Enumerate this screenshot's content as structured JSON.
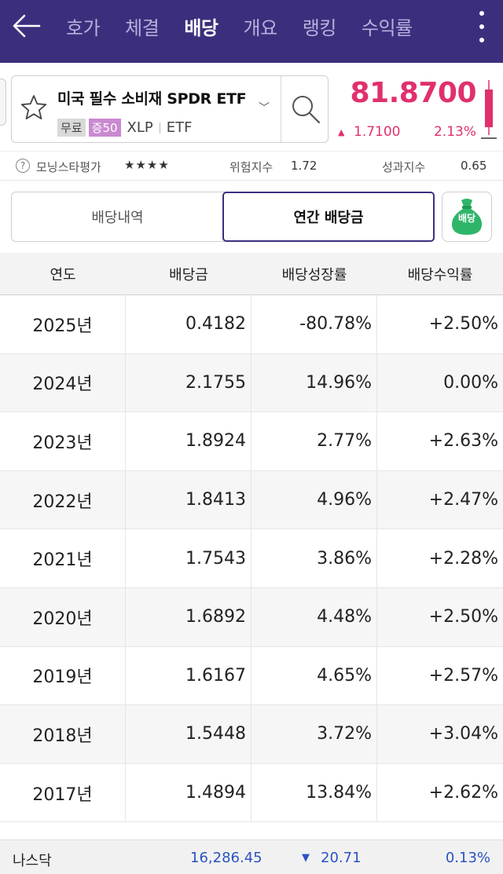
{
  "header": {
    "tabs": [
      "호가",
      "체결",
      "배당",
      "개요",
      "랭킹",
      "수익률"
    ],
    "active_tab": "배당"
  },
  "stock": {
    "name": "미국 필수 소비재 SPDR ETF",
    "badge_free": "무료",
    "badge_margin": "증50",
    "code": "XLP",
    "type": "ETF",
    "price": "81.8700",
    "change_symbol": "▲",
    "change": "1.7100",
    "change_pct": "2.13%"
  },
  "morningstar": {
    "help": "?",
    "label": "모닝스타평가",
    "stars": "★★★★",
    "risk_label": "위험지수",
    "risk_value": "1.72",
    "perf_label": "성과지수",
    "perf_value": "0.65"
  },
  "toggle": {
    "left": "배당내역",
    "right": "연간 배당금",
    "active": "right",
    "icon_label": "배당"
  },
  "table": {
    "headers": [
      "연도",
      "배당금",
      "배당성장률",
      "배당수익률"
    ],
    "rows": [
      {
        "year": "2025년",
        "dividend": "0.4182",
        "growth": "-80.78%",
        "growth_sign": "neg",
        "yield": "+2.50%",
        "yield_sign": "pos"
      },
      {
        "year": "2024년",
        "dividend": "2.1755",
        "growth": "14.96%",
        "growth_sign": "pos",
        "yield": "0.00%",
        "yield_sign": "neu"
      },
      {
        "year": "2023년",
        "dividend": "1.8924",
        "growth": "2.77%",
        "growth_sign": "pos",
        "yield": "+2.63%",
        "yield_sign": "pos"
      },
      {
        "year": "2022년",
        "dividend": "1.8413",
        "growth": "4.96%",
        "growth_sign": "pos",
        "yield": "+2.47%",
        "yield_sign": "pos"
      },
      {
        "year": "2021년",
        "dividend": "1.7543",
        "growth": "3.86%",
        "growth_sign": "pos",
        "yield": "+2.28%",
        "yield_sign": "pos"
      },
      {
        "year": "2020년",
        "dividend": "1.6892",
        "growth": "4.48%",
        "growth_sign": "pos",
        "yield": "+2.50%",
        "yield_sign": "pos"
      },
      {
        "year": "2019년",
        "dividend": "1.6167",
        "growth": "4.65%",
        "growth_sign": "pos",
        "yield": "+2.57%",
        "yield_sign": "pos"
      },
      {
        "year": "2018년",
        "dividend": "1.5448",
        "growth": "3.72%",
        "growth_sign": "pos",
        "yield": "+3.04%",
        "yield_sign": "pos"
      },
      {
        "year": "2017년",
        "dividend": "1.4894",
        "growth": "13.84%",
        "growth_sign": "pos",
        "yield": "+2.62%",
        "yield_sign": "pos"
      }
    ]
  },
  "footer": {
    "index_name": "나스닥",
    "index_value": "16,286.45",
    "change_symbol": "▼",
    "change": "20.71",
    "change_pct": "0.13%"
  },
  "colors": {
    "header_bg": "#3b2f7d",
    "up": "#e0306e",
    "down": "#2b52c2",
    "icon_green": "#2fb56a"
  },
  "icons": [
    "back-arrow-icon",
    "more-vert-icon",
    "star-icon",
    "chevron-down-icon",
    "search-icon",
    "candle-icon",
    "help-icon",
    "money-bag-icon",
    "triangle-up-icon",
    "triangle-down-icon"
  ]
}
